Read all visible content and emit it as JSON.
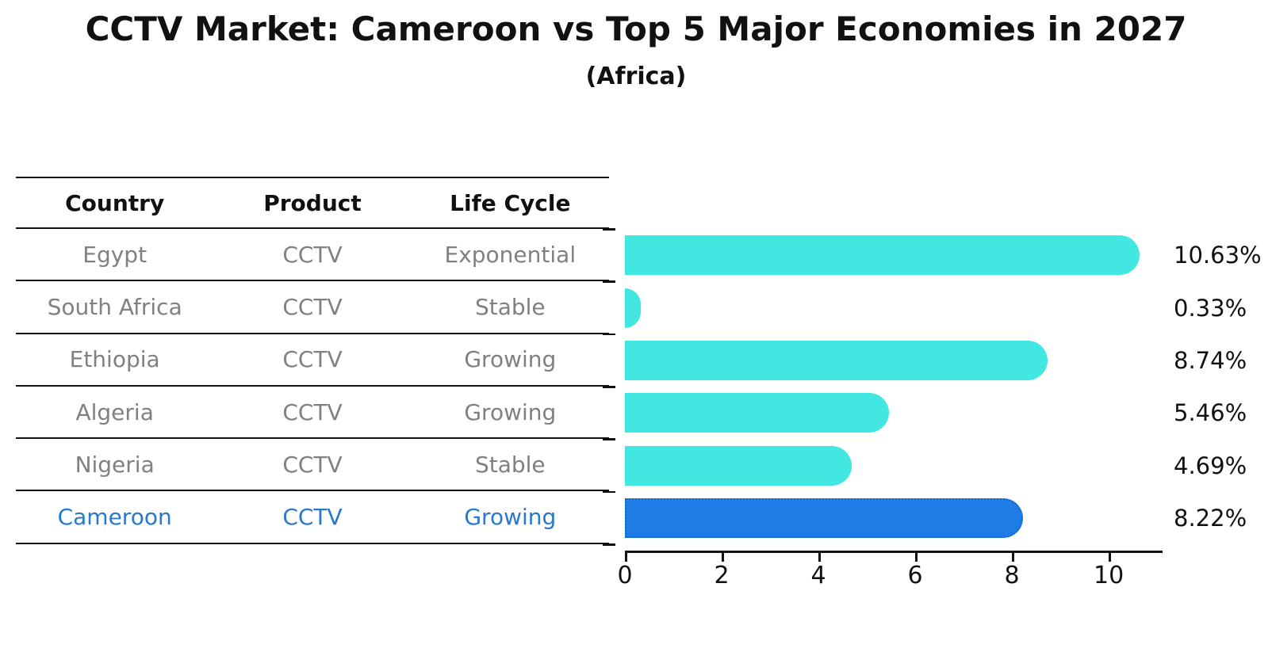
{
  "title": "CCTV Market: Cameroon vs Top 5 Major Economies in 2027",
  "subtitle": "(Africa)",
  "table": {
    "headers": [
      "Country",
      "Product",
      "Life Cycle"
    ],
    "rows": [
      {
        "country": "Egypt",
        "product": "CCTV",
        "life_cycle": "Exponential",
        "highlight": false
      },
      {
        "country": "South Africa",
        "product": "CCTV",
        "life_cycle": "Stable",
        "highlight": false
      },
      {
        "country": "Ethiopia",
        "product": "CCTV",
        "life_cycle": "Growing",
        "highlight": false
      },
      {
        "country": "Algeria",
        "product": "CCTV",
        "life_cycle": "Growing",
        "highlight": false
      },
      {
        "country": "Nigeria",
        "product": "CCTV",
        "life_cycle": "Stable",
        "highlight": false
      },
      {
        "country": "Cameroon",
        "product": "CCTV",
        "life_cycle": "Growing",
        "highlight": true
      }
    ]
  },
  "chart_data": {
    "type": "bar",
    "orientation": "horizontal",
    "title": "CCTV Market: Cameroon vs Top 5 Major Economies in 2027",
    "subtitle": "(Africa)",
    "categories": [
      "Egypt",
      "South Africa",
      "Ethiopia",
      "Algeria",
      "Nigeria",
      "Cameroon"
    ],
    "values": [
      10.63,
      0.33,
      8.74,
      5.46,
      4.69,
      8.22
    ],
    "value_labels": [
      "10.63%",
      "0.33%",
      "8.74%",
      "5.46%",
      "4.69%",
      "8.22%"
    ],
    "x_ticks": [
      0,
      2,
      4,
      6,
      8,
      10
    ],
    "xlim": [
      0,
      11.08
    ],
    "grid": false,
    "legend": false,
    "highlight_index": 5,
    "colors": {
      "bar": "#41E7E0",
      "highlight_bar": "#1E7CE6",
      "highlight_border": "#1668C8",
      "table_text": "#808080",
      "highlight_text": "#2878d0",
      "axis": "#111111"
    }
  }
}
